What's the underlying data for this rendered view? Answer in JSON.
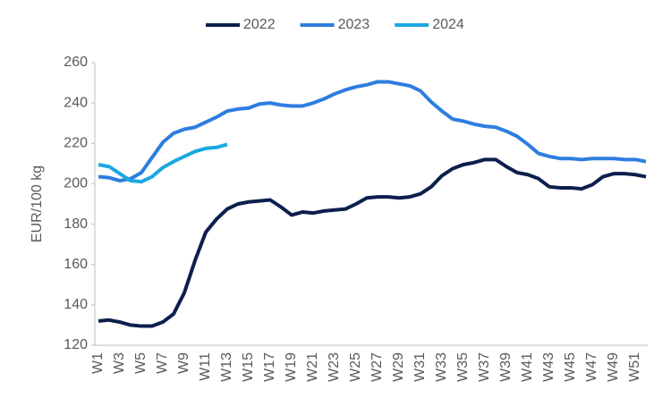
{
  "chart_data": {
    "type": "line",
    "ylabel": "EUR/100 kg",
    "categories": [
      "W1",
      null,
      "W3",
      null,
      "W5",
      null,
      "W7",
      null,
      "W9",
      null,
      "W11",
      null,
      "W13",
      null,
      "W15",
      null,
      "W17",
      null,
      "W19",
      null,
      "W21",
      null,
      "W23",
      null,
      "W25",
      null,
      "W27",
      null,
      "W29",
      null,
      "W31",
      null,
      "W33",
      null,
      "W35",
      null,
      "W37",
      null,
      "W39",
      null,
      "W41",
      null,
      "W43",
      null,
      "W45",
      null,
      "W47",
      null,
      "W49",
      null,
      "W51",
      null
    ],
    "series": [
      {
        "name": "2022",
        "color": "#0c1f4d",
        "values": [
          132,
          132.5,
          131.5,
          130,
          129.5,
          129.5,
          131.5,
          135.5,
          146,
          162,
          176,
          182.5,
          187.5,
          190,
          191,
          191.5,
          192,
          188.5,
          184.5,
          186,
          185.5,
          186.5,
          187,
          187.5,
          190,
          193,
          193.5,
          193.5,
          193,
          193.5,
          195,
          198.5,
          204,
          207.5,
          209.5,
          210.5,
          212,
          212,
          208.5,
          205.5,
          204.5,
          202.5,
          198.5,
          198,
          198,
          197.5,
          199.5,
          203.5,
          205,
          205,
          204.5,
          203.5
        ]
      },
      {
        "name": "2023",
        "color": "#2e7de0",
        "values": [
          203.5,
          203,
          201.5,
          202.5,
          205.5,
          213,
          220.5,
          225,
          227,
          228,
          230.5,
          233,
          236,
          237,
          237.5,
          239.5,
          240,
          239,
          238.5,
          238.5,
          240,
          242,
          244.5,
          246.5,
          248,
          249,
          250.5,
          250.5,
          249.5,
          248.5,
          246,
          240.5,
          236,
          232,
          231,
          229.5,
          228.5,
          228,
          226,
          223.5,
          219.5,
          215,
          213.5,
          212.5,
          212.5,
          212,
          212.5,
          212.5,
          212.5,
          212,
          212,
          211
        ]
      },
      {
        "name": "2024",
        "color": "#1ba8e0",
        "values": [
          209.5,
          208.5,
          205,
          201.5,
          201,
          203.5,
          208,
          211,
          213.5,
          216,
          217.5,
          218,
          219.5,
          null,
          null,
          null,
          null,
          null,
          null,
          null,
          null,
          null,
          null,
          null,
          null,
          null,
          null,
          null,
          null,
          null,
          null,
          null,
          null,
          null,
          null,
          null,
          null,
          null,
          null,
          null,
          null,
          null,
          null,
          null,
          null,
          null,
          null,
          null,
          null,
          null,
          null,
          null
        ]
      }
    ],
    "ylim": [
      120,
      260
    ],
    "yticks": [
      120,
      140,
      160,
      180,
      200,
      220,
      240,
      260
    ],
    "grid": false,
    "legend": "top"
  }
}
